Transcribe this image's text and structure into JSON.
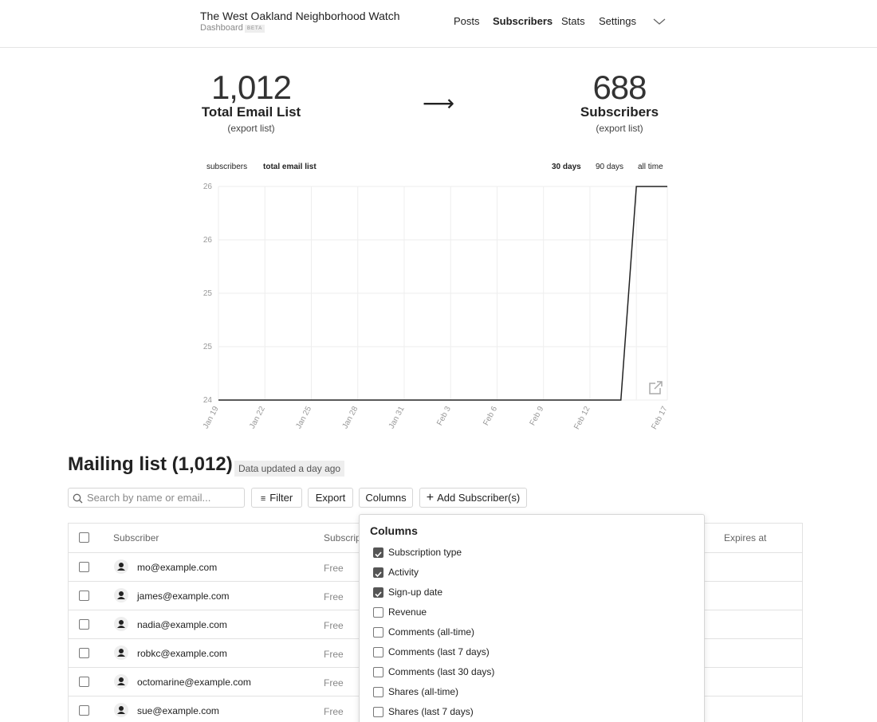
{
  "header": {
    "title": "The West Oakland Neighborhood Watch",
    "subtitle": "Dashboard",
    "badge": "BETA",
    "nav": [
      {
        "label": "Posts",
        "active": false
      },
      {
        "label": "Subscribers",
        "active": true
      },
      {
        "label": "Stats",
        "active": false
      },
      {
        "label": "Settings",
        "active": false
      }
    ]
  },
  "stats": [
    {
      "value": "1,012",
      "label": "Total Email List",
      "link": "(export list)"
    },
    {
      "value": "688",
      "label": "Subscribers",
      "link": "(export list)"
    }
  ],
  "chart_controls": {
    "metrics": [
      {
        "label": "subscribers",
        "active": false
      },
      {
        "label": "total email list",
        "active": true
      }
    ],
    "ranges": [
      {
        "label": "30 days",
        "active": true
      },
      {
        "label": "90 days",
        "active": false
      },
      {
        "label": "all time",
        "active": false
      }
    ]
  },
  "chart_data": {
    "type": "line",
    "color": "#222222",
    "grid": true,
    "categories": [
      "Jan 19",
      null,
      null,
      "Jan 22",
      null,
      null,
      "Jan 25",
      null,
      null,
      "Jan 28",
      null,
      null,
      "Jan 31",
      null,
      null,
      "Feb 3",
      null,
      null,
      "Feb 6",
      null,
      null,
      "Feb 9",
      null,
      null,
      "Feb 12",
      null,
      null,
      null,
      null,
      "Feb 17"
    ],
    "values": [
      24,
      24,
      24,
      24,
      24,
      24,
      24,
      24,
      24,
      24,
      24,
      24,
      24,
      24,
      24,
      24,
      24,
      24,
      24,
      24,
      24,
      24,
      24,
      24,
      24,
      24,
      24,
      26,
      26,
      26
    ],
    "ylim": [
      24,
      26
    ],
    "yticks": [
      24,
      {
        "value": 24.5,
        "label": "25"
      },
      25,
      {
        "value": 25.5,
        "label": "26"
      },
      26
    ]
  },
  "mailing_list": {
    "title": "Mailing list (1,012)",
    "status": "Data updated a day ago",
    "search_placeholder": "Search by name or email...",
    "buttons": [
      "Filter",
      "Export",
      "Columns",
      "Add Subscriber(s)"
    ],
    "table": {
      "columns": [
        "Subscriber",
        "Subscription type",
        "Expires at"
      ],
      "rows": [
        [
          "mo@example.com",
          "Free"
        ],
        [
          "james@example.com",
          "Free"
        ],
        [
          "nadia@example.com",
          "Free"
        ],
        [
          "robkc@example.com",
          "Free"
        ],
        [
          "octomarine@example.com",
          "Free"
        ],
        [
          "sue@example.com",
          "Free"
        ]
      ]
    }
  },
  "columns_menu": {
    "title": "Columns",
    "options": [
      {
        "label": "Subscription type",
        "checked": true
      },
      {
        "label": "Activity",
        "checked": true
      },
      {
        "label": "Sign-up date",
        "checked": true
      },
      {
        "label": "Revenue",
        "checked": false
      },
      {
        "label": "Comments (all-time)",
        "checked": false
      },
      {
        "label": "Comments (last 7 days)",
        "checked": false
      },
      {
        "label": "Comments (last 30 days)",
        "checked": false
      },
      {
        "label": "Shares (all-time)",
        "checked": false
      },
      {
        "label": "Shares (last 7 days)",
        "checked": false
      }
    ]
  }
}
